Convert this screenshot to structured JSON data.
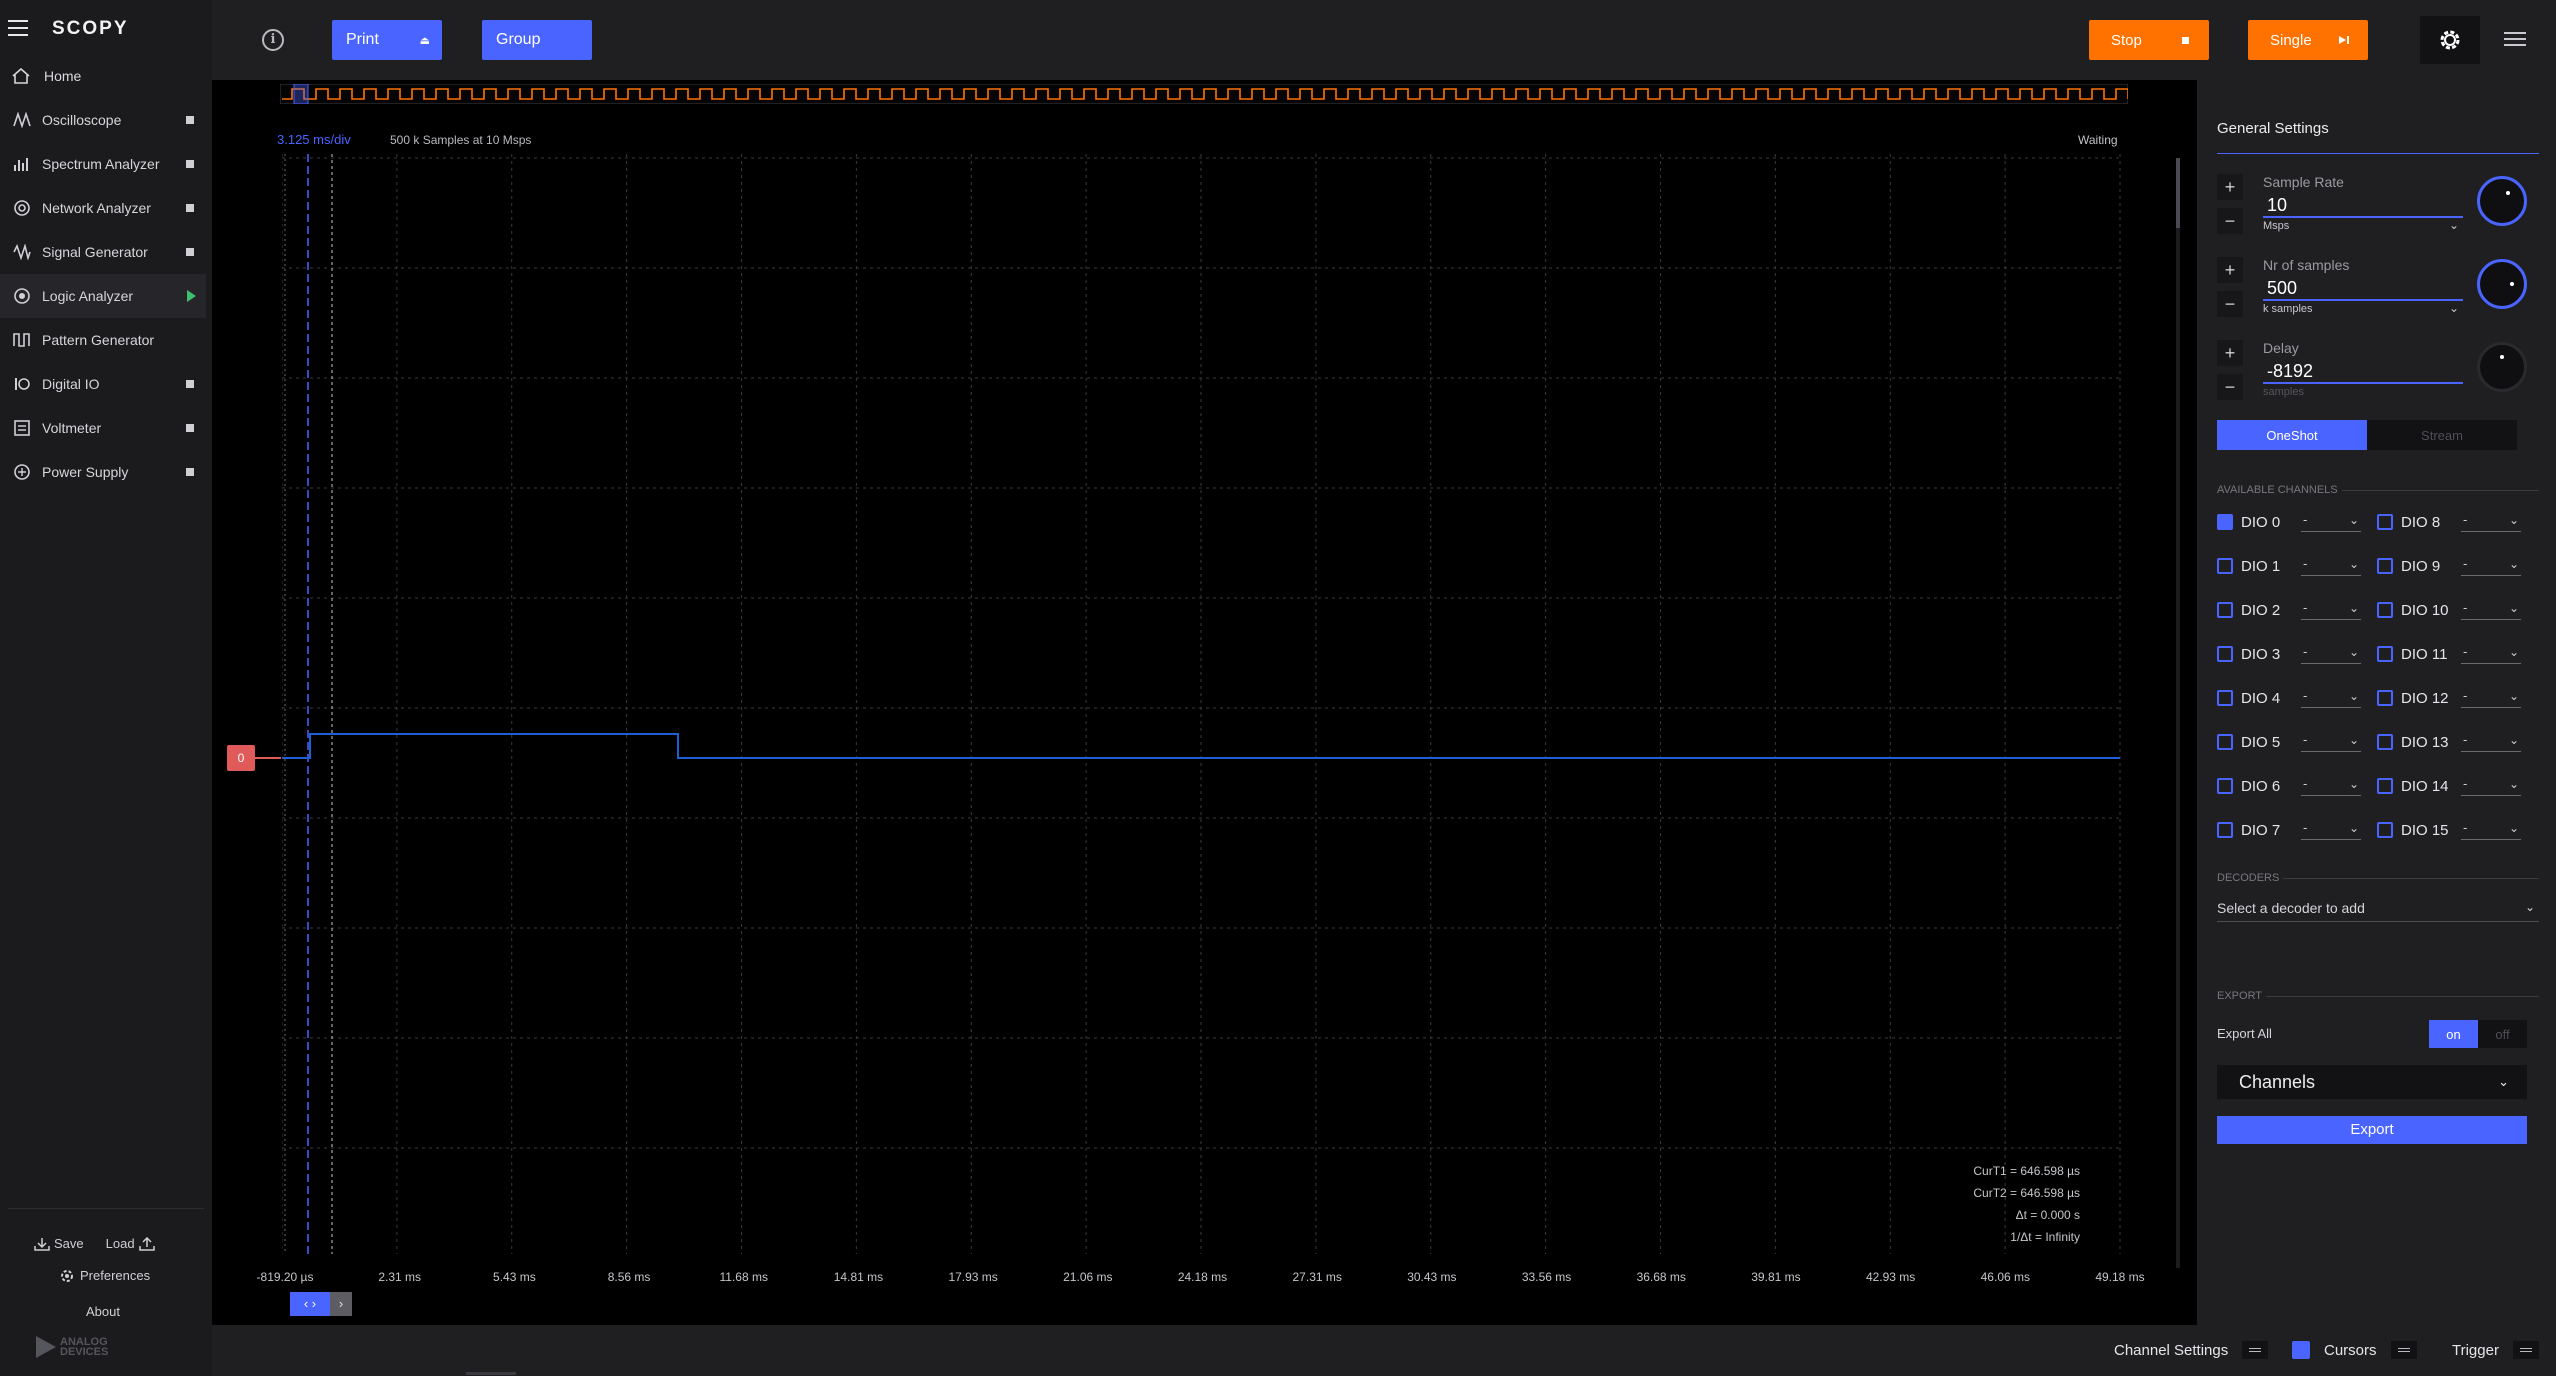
{
  "app": {
    "logo": "SCOPY"
  },
  "sidebar": {
    "home_label": "Home",
    "items": [
      {
        "label": "Oscilloscope",
        "icon": "oscilloscope-icon",
        "status": "stopped"
      },
      {
        "label": "Spectrum Analyzer",
        "icon": "spectrum-icon",
        "status": "stopped"
      },
      {
        "label": "Network Analyzer",
        "icon": "network-icon",
        "status": "stopped"
      },
      {
        "label": "Signal Generator",
        "icon": "signal-icon",
        "status": "stopped"
      },
      {
        "label": "Logic Analyzer",
        "icon": "logic-icon",
        "status": "running"
      },
      {
        "label": "Pattern Generator",
        "icon": "pattern-icon",
        "status": "none"
      },
      {
        "label": "Digital IO",
        "icon": "digital-io-icon",
        "status": "stopped"
      },
      {
        "label": "Voltmeter",
        "icon": "voltmeter-icon",
        "status": "stopped"
      },
      {
        "label": "Power Supply",
        "icon": "power-icon",
        "status": "stopped"
      }
    ],
    "save_label": "Save",
    "load_label": "Load",
    "preferences_label": "Preferences",
    "about_label": "About",
    "brand_line1": "ANALOG",
    "brand_line2": "DEVICES"
  },
  "toolbar": {
    "print_label": "Print",
    "group_label": "Group",
    "stop_label": "Stop",
    "single_label": "Single"
  },
  "plot": {
    "time_div": "3.125 ms/div",
    "samples_info": "500 k Samples at 10 Msps",
    "status": "Waiting",
    "channel_marker": "0",
    "x_ticks": [
      "-819.20 µs",
      "2.31 ms",
      "5.43 ms",
      "8.56 ms",
      "11.68 ms",
      "14.81 ms",
      "17.93 ms",
      "21.06 ms",
      "24.18 ms",
      "27.31 ms",
      "30.43 ms",
      "33.56 ms",
      "36.68 ms",
      "39.81 ms",
      "42.93 ms",
      "46.06 ms",
      "49.18 ms"
    ],
    "cursors": {
      "curt1": "CurT1 = 646.598 µs",
      "curt2": "CurT2 = 646.598 µs",
      "dt": "Δt = 0.000 s",
      "inv_dt": "1/Δt = Infinity"
    },
    "colors": {
      "accent": "#4a64ff",
      "orange": "#ff7200",
      "trace": "#1e5fd6",
      "marker": "#e05a5a"
    }
  },
  "panel": {
    "title": "General Settings",
    "sample_rate": {
      "label": "Sample Rate",
      "value": "10",
      "unit": "Msps"
    },
    "nr_samples": {
      "label": "Nr of samples",
      "value": "500",
      "unit": "k samples"
    },
    "delay": {
      "label": "Delay",
      "value": "-8192",
      "unit": "samples"
    },
    "mode_oneshot": "OneShot",
    "mode_stream": "Stream",
    "available_channels_label": "AVAILABLE CHANNELS",
    "channels_left": [
      {
        "name": "DIO 0",
        "checked": true,
        "value": "-"
      },
      {
        "name": "DIO 1",
        "checked": false,
        "value": "-"
      },
      {
        "name": "DIO 2",
        "checked": false,
        "value": "-"
      },
      {
        "name": "DIO 3",
        "checked": false,
        "value": "-"
      },
      {
        "name": "DIO 4",
        "checked": false,
        "value": "-"
      },
      {
        "name": "DIO 5",
        "checked": false,
        "value": "-"
      },
      {
        "name": "DIO 6",
        "checked": false,
        "value": "-"
      },
      {
        "name": "DIO 7",
        "checked": false,
        "value": "-"
      }
    ],
    "channels_right": [
      {
        "name": "DIO 8",
        "checked": false,
        "value": "-"
      },
      {
        "name": "DIO 9",
        "checked": false,
        "value": "-"
      },
      {
        "name": "DIO 10",
        "checked": false,
        "value": "-"
      },
      {
        "name": "DIO 11",
        "checked": false,
        "value": "-"
      },
      {
        "name": "DIO 12",
        "checked": false,
        "value": "-"
      },
      {
        "name": "DIO 13",
        "checked": false,
        "value": "-"
      },
      {
        "name": "DIO 14",
        "checked": false,
        "value": "-"
      },
      {
        "name": "DIO 15",
        "checked": false,
        "value": "-"
      }
    ],
    "decoders_label": "DECODERS",
    "decoder_placeholder": "Select a decoder to add",
    "export_label": "EXPORT",
    "export_all_label": "Export All",
    "export_on": "on",
    "export_off": "off",
    "export_dropdown": "Channels",
    "export_button": "Export"
  },
  "bottombar": {
    "channel_settings": "Channel Settings",
    "cursors": "Cursors",
    "trigger": "Trigger"
  }
}
